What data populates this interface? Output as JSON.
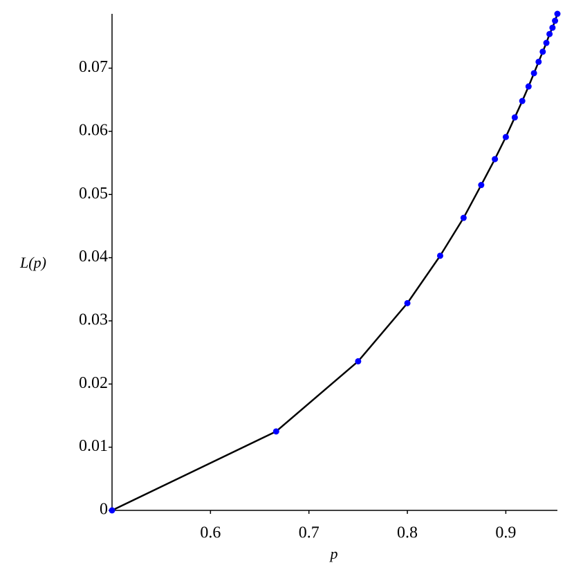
{
  "chart_data": {
    "type": "line",
    "x_label": "p",
    "y_label": "L(p)",
    "x": [
      0.5,
      0.6667,
      0.75,
      0.8,
      0.8333,
      0.8571,
      0.875,
      0.8889,
      0.9,
      0.9091,
      0.9167,
      0.9231,
      0.9286,
      0.9333,
      0.9375,
      0.9412,
      0.9444,
      0.9474,
      0.95,
      0.9524
    ],
    "series": [
      {
        "name": "L(p)",
        "color": "#000000",
        "marker_color": "#0000ff",
        "values": [
          0,
          0.0125,
          0.0236,
          0.0328,
          0.0403,
          0.0463,
          0.0515,
          0.0556,
          0.0591,
          0.0622,
          0.0648,
          0.0671,
          0.0692,
          0.071,
          0.0726,
          0.074,
          0.0754,
          0.0764,
          0.0775,
          0.0786
        ]
      }
    ],
    "xlim": [
      0.5,
      0.9524
    ],
    "xticks": [
      0.6,
      0.7,
      0.8,
      0.9
    ],
    "ylim": [
      0,
      0.0786
    ],
    "yticks": [
      0,
      0.01,
      0.02,
      0.03,
      0.04,
      0.05,
      0.06,
      0.07
    ]
  }
}
